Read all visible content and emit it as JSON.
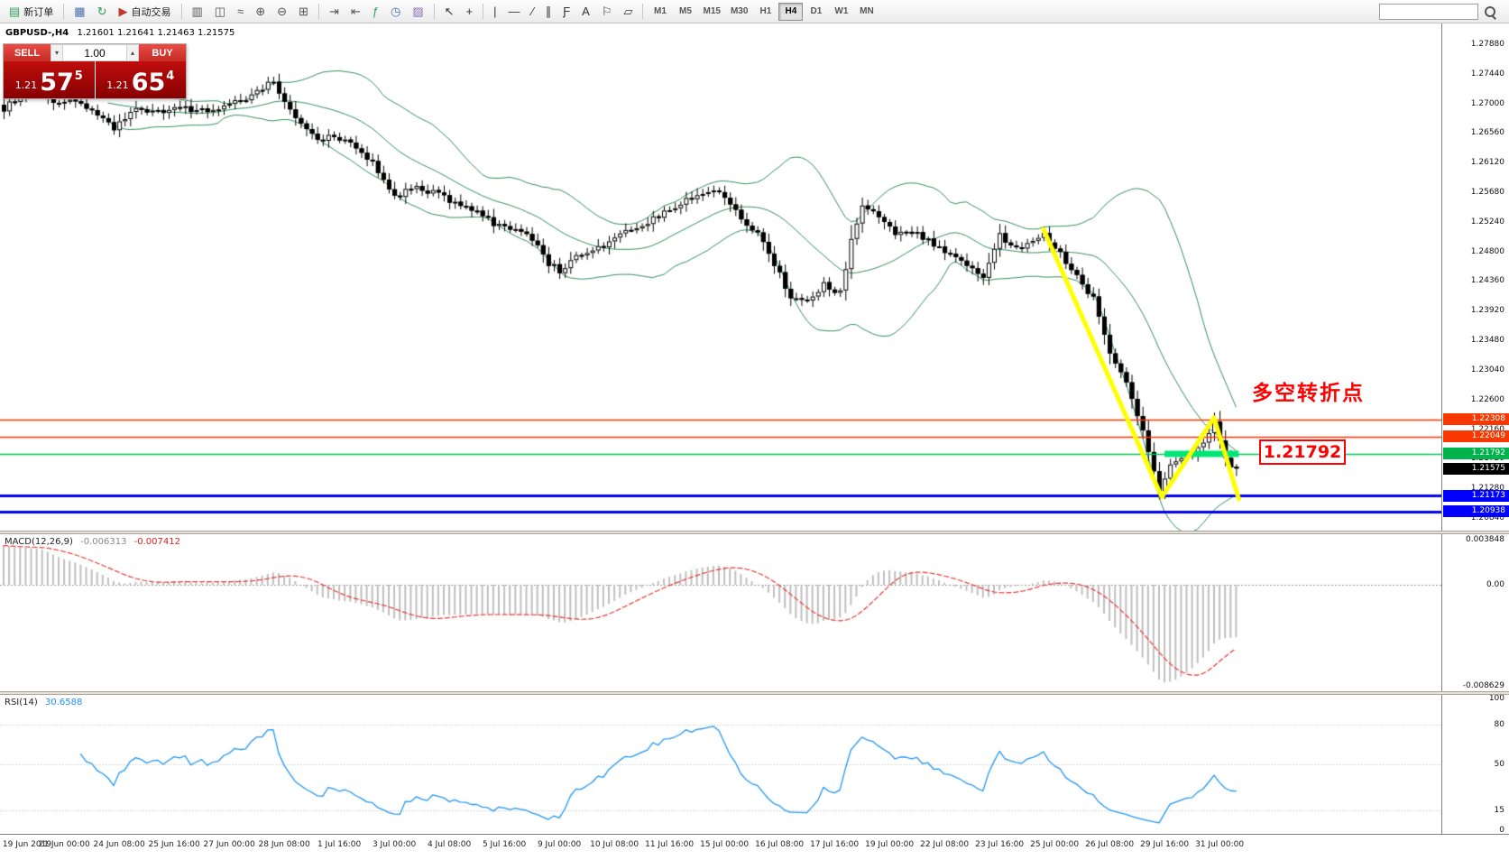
{
  "meta": {
    "app_title": "MetaTrader 4",
    "accent_red": "#ff0000",
    "accent_green": "#00c853",
    "accent_blue": "#0000ff"
  },
  "toolbar": {
    "active_timeframe": "H4",
    "items": [
      {
        "type": "button",
        "name": "new-order-button",
        "glyph": "▤",
        "glyph_color": "#2e9e5b",
        "label": "新订单"
      },
      {
        "type": "sep",
        "name": "toolbar-separator-1"
      },
      {
        "type": "button",
        "name": "charts-grid-button",
        "glyph": "▦",
        "glyph_color": "#4a6fb5"
      },
      {
        "type": "button",
        "name": "refresh-button",
        "glyph": "↻",
        "glyph_color": "#2e9e5b"
      },
      {
        "type": "button",
        "name": "autotrading-button",
        "glyph": "▶",
        "glyph_color": "#c23a2f",
        "label": "自动交易"
      },
      {
        "type": "sep",
        "name": "toolbar-separator-2"
      },
      {
        "type": "button",
        "name": "bar-chart-button",
        "glyph": "▥",
        "glyph_color": "#555555"
      },
      {
        "type": "button",
        "name": "candlestick-chart-button",
        "glyph": "◫",
        "glyph_color": "#555555"
      },
      {
        "type": "button",
        "name": "line-chart-button",
        "glyph": "≈",
        "glyph_color": "#555555"
      },
      {
        "type": "button",
        "name": "zoom-in-button",
        "glyph": "⊕",
        "glyph_color": "#555555"
      },
      {
        "type": "button",
        "name": "zoom-out-button",
        "glyph": "⊖",
        "glyph_color": "#555555"
      },
      {
        "type": "button",
        "name": "tile-windows-button",
        "glyph": "⊞",
        "glyph_color": "#555555"
      },
      {
        "type": "sep",
        "name": "toolbar-separator-3"
      },
      {
        "type": "button",
        "name": "auto-scroll-button",
        "glyph": "⇥",
        "glyph_color": "#555555"
      },
      {
        "type": "button",
        "name": "chart-shift-button",
        "glyph": "⇤",
        "glyph_color": "#555555"
      },
      {
        "type": "button",
        "name": "indicators-button",
        "glyph": "ƒ",
        "glyph_color": "#2e9e5b"
      },
      {
        "type": "button",
        "name": "periods-button",
        "glyph": "◷",
        "glyph_color": "#4a6fb5"
      },
      {
        "type": "button",
        "name": "templates-button",
        "glyph": "▨",
        "glyph_color": "#8a6fb5"
      },
      {
        "type": "sep",
        "name": "toolbar-separator-4"
      },
      {
        "type": "button",
        "name": "cursor-button",
        "glyph": "↖",
        "glyph_color": "#333333"
      },
      {
        "type": "button",
        "name": "crosshair-button",
        "glyph": "+",
        "glyph_color": "#333333"
      },
      {
        "type": "sep",
        "name": "toolbar-separator-5"
      },
      {
        "type": "button",
        "name": "vertical-line-button",
        "glyph": "|",
        "glyph_color": "#333333"
      },
      {
        "type": "button",
        "name": "horizontal-line-button",
        "glyph": "―",
        "glyph_color": "#333333"
      },
      {
        "type": "button",
        "name": "trendline-button",
        "glyph": "∕",
        "glyph_color": "#333333"
      },
      {
        "type": "button",
        "name": "channel-button",
        "glyph": "∥",
        "glyph_color": "#333333"
      },
      {
        "type": "button",
        "name": "fibonacci-button",
        "glyph": "Ƒ",
        "glyph_color": "#333333"
      },
      {
        "type": "button",
        "name": "text-button",
        "glyph": "A",
        "glyph_color": "#333333"
      },
      {
        "type": "button",
        "name": "label-button",
        "glyph": "⚐",
        "glyph_color": "#333333"
      },
      {
        "type": "button",
        "name": "shapes-button",
        "glyph": "▱",
        "glyph_color": "#333333"
      },
      {
        "type": "sep",
        "name": "toolbar-separator-6"
      },
      {
        "type": "tf",
        "name": "timeframe-m1-button",
        "label": "M1"
      },
      {
        "type": "tf",
        "name": "timeframe-m5-button",
        "label": "M5"
      },
      {
        "type": "tf",
        "name": "timeframe-m15-button",
        "label": "M15"
      },
      {
        "type": "tf",
        "name": "timeframe-m30-button",
        "label": "M30"
      },
      {
        "type": "tf",
        "name": "timeframe-h1-button",
        "label": "H1"
      },
      {
        "type": "tf",
        "name": "timeframe-h4-button",
        "label": "H4"
      },
      {
        "type": "tf",
        "name": "timeframe-d1-button",
        "label": "D1"
      },
      {
        "type": "tf",
        "name": "timeframe-w1-button",
        "label": "W1"
      },
      {
        "type": "tf",
        "name": "timeframe-mn-button",
        "label": "MN"
      },
      {
        "type": "spacer",
        "name": "toolbar-spacer"
      },
      {
        "type": "search",
        "name": "toolbar-search",
        "placeholder": ""
      }
    ]
  },
  "chart_header": {
    "symbol_period": "GBPUSD-,H4",
    "ohlc": "1.21601 1.21641 1.21463 1.21575"
  },
  "trade_panel": {
    "sell_label": "SELL",
    "buy_label": "BUY",
    "volume": "1.00",
    "volume_down_glyph": "▾",
    "volume_up_glyph": "▴",
    "sell_price": {
      "prefix": "1.21",
      "big": "57",
      "sup": "5"
    },
    "buy_price": {
      "prefix": "1.21",
      "big": "65",
      "sup": "4"
    }
  },
  "annotations": {
    "turning_point_text": "多空转折点",
    "price_callout": "1.21792"
  },
  "price_axis": {
    "ticks": [
      "1.27880",
      "1.27440",
      "1.27000",
      "1.26560",
      "1.26120",
      "1.25680",
      "1.25240",
      "1.24800",
      "1.24360",
      "1.23920",
      "1.23480",
      "1.23040",
      "1.22600",
      "1.22160",
      "1.21720",
      "1.21280",
      "1.20840"
    ],
    "level_labels": [
      {
        "text": "1.22308",
        "bg": "#f83800",
        "name": "resistance-1"
      },
      {
        "text": "1.22049",
        "bg": "#f83800",
        "name": "resistance-2"
      },
      {
        "text": "1.21792",
        "bg": "#00b34d",
        "name": "pivot-green"
      },
      {
        "text": "1.21575",
        "bg": "#000000",
        "name": "current-price"
      },
      {
        "text": "1.21173",
        "bg": "#0000ff",
        "name": "support-1"
      },
      {
        "text": "1.20938",
        "bg": "#0000ff",
        "name": "support-2"
      }
    ]
  },
  "macd_panel": {
    "name_label": "MACD(12,26,9)",
    "main_value": "-0.006313",
    "signal_value": "-0.007412",
    "axis": [
      "0.003848",
      "0.00",
      "-0.008629"
    ]
  },
  "rsi_panel": {
    "name_label": "RSI(14)",
    "value": "30.6588",
    "axis": [
      "100",
      "80",
      "50",
      "15",
      "0"
    ],
    "levels": [
      80,
      50,
      15
    ]
  },
  "time_axis": {
    "labels": [
      "19 Jun 2019",
      "21 Jun 00:00",
      "24 Jun 08:00",
      "25 Jun 16:00",
      "27 Jun 00:00",
      "28 Jun 08:00",
      "1 Jul 16:00",
      "3 Jul 00:00",
      "4 Jul 08:00",
      "5 Jul 16:00",
      "9 Jul 00:00",
      "10 Jul 08:00",
      "11 Jul 16:00",
      "15 Jul 00:00",
      "16 Jul 08:00",
      "17 Jul 16:00",
      "19 Jul 00:00",
      "22 Jul 08:00",
      "23 Jul 16:00",
      "25 Jul 00:00",
      "26 Jul 08:00",
      "29 Jul 16:00",
      "31 Jul 00:00"
    ]
  },
  "chart_data": {
    "type": "candlestick",
    "symbol": "GBPUSD-",
    "timeframe": "H4",
    "title": "GBPUSD-,H4 1.21601 1.21641 1.21463 1.21575",
    "last_ohlc": {
      "open": 1.21601,
      "high": 1.21641,
      "low": 1.21463,
      "close": 1.21575
    },
    "visible_range": {
      "price_min": 1.2068,
      "price_max": 1.2819,
      "bars": 225
    },
    "close_path": [
      [
        0,
        1.2692
      ],
      [
        3,
        1.2712
      ],
      [
        6,
        1.2719
      ],
      [
        9,
        1.27
      ],
      [
        12,
        1.2706
      ],
      [
        15,
        1.2694
      ],
      [
        18,
        1.2676
      ],
      [
        20,
        1.2662
      ],
      [
        24,
        1.2692
      ],
      [
        28,
        1.2686
      ],
      [
        32,
        1.2694
      ],
      [
        36,
        1.2689
      ],
      [
        40,
        1.2697
      ],
      [
        44,
        1.2706
      ],
      [
        47,
        1.2722
      ],
      [
        49,
        1.2734
      ],
      [
        52,
        1.269
      ],
      [
        55,
        1.2665
      ],
      [
        57,
        1.2645
      ],
      [
        60,
        1.2652
      ],
      [
        63,
        1.2638
      ],
      [
        66,
        1.262
      ],
      [
        68,
        1.2601
      ],
      [
        71,
        1.256
      ],
      [
        74,
        1.2575
      ],
      [
        78,
        1.2567
      ],
      [
        82,
        1.2552
      ],
      [
        86,
        1.2542
      ],
      [
        89,
        1.2521
      ],
      [
        93,
        1.2511
      ],
      [
        96,
        1.25
      ],
      [
        99,
        1.2462
      ],
      [
        101,
        1.2452
      ],
      [
        104,
        1.2472
      ],
      [
        107,
        1.248
      ],
      [
        110,
        1.2494
      ],
      [
        114,
        1.2513
      ],
      [
        118,
        1.2528
      ],
      [
        122,
        1.2546
      ],
      [
        126,
        1.2565
      ],
      [
        129,
        1.2572
      ],
      [
        131,
        1.2563
      ],
      [
        134,
        1.2526
      ],
      [
        137,
        1.2504
      ],
      [
        140,
        1.2462
      ],
      [
        143,
        1.2412
      ],
      [
        146,
        1.2405
      ],
      [
        149,
        1.243
      ],
      [
        152,
        1.2418
      ],
      [
        154,
        1.2495
      ],
      [
        156,
        1.2546
      ],
      [
        159,
        1.2532
      ],
      [
        162,
        1.2508
      ],
      [
        166,
        1.2507
      ],
      [
        170,
        1.2486
      ],
      [
        174,
        1.2463
      ],
      [
        178,
        1.2444
      ],
      [
        181,
        1.2505
      ],
      [
        184,
        1.2483
      ],
      [
        187,
        1.25
      ],
      [
        189,
        1.2508
      ],
      [
        192,
        1.2477
      ],
      [
        195,
        1.2442
      ],
      [
        198,
        1.241
      ],
      [
        201,
        1.233
      ],
      [
        204,
        1.2285
      ],
      [
        207,
        1.2213
      ],
      [
        210,
        1.2125
      ],
      [
        212,
        1.2163
      ],
      [
        214,
        1.2172
      ],
      [
        216,
        1.218
      ],
      [
        218,
        1.2196
      ],
      [
        220,
        1.2228
      ],
      [
        221,
        1.22
      ],
      [
        222,
        1.2172
      ],
      [
        223,
        1.2158
      ],
      [
        224,
        1.21575
      ]
    ],
    "overlays": {
      "bollinger": {
        "period": 20,
        "deviation": 2,
        "color": "#2f8e5e"
      },
      "horizontal_lines": [
        {
          "price": 1.22308,
          "color": "#f83800",
          "width": 1.4
        },
        {
          "price": 1.22049,
          "color": "#f83800",
          "width": 1.4
        },
        {
          "price": 1.21792,
          "color": "#00c853",
          "width": 1.6
        },
        {
          "price": 1.21173,
          "color": "#0000ee",
          "width": 3
        },
        {
          "price": 1.20938,
          "color": "#0000ee",
          "width": 3
        }
      ],
      "green_segment": {
        "price": 1.21792,
        "bar_start": 211,
        "bar_end": 224,
        "color": "#00e676",
        "width": 7
      },
      "yellow_zigzag": {
        "color": "#ffff00",
        "width": 5,
        "points": [
          [
            189,
            1.2513
          ],
          [
            210.5,
            1.2115
          ],
          [
            220,
            1.2233
          ],
          [
            224.5,
            1.2112
          ]
        ]
      }
    },
    "indicators": {
      "macd": {
        "fast": 12,
        "slow": 26,
        "signal": 9,
        "current_main": -0.006313,
        "current_signal": -0.007412,
        "scale_max": 0.003848,
        "scale_min": -0.008629
      },
      "rsi": {
        "period": 14,
        "current": 30.6588,
        "levels": [
          80,
          50,
          15
        ]
      }
    }
  }
}
